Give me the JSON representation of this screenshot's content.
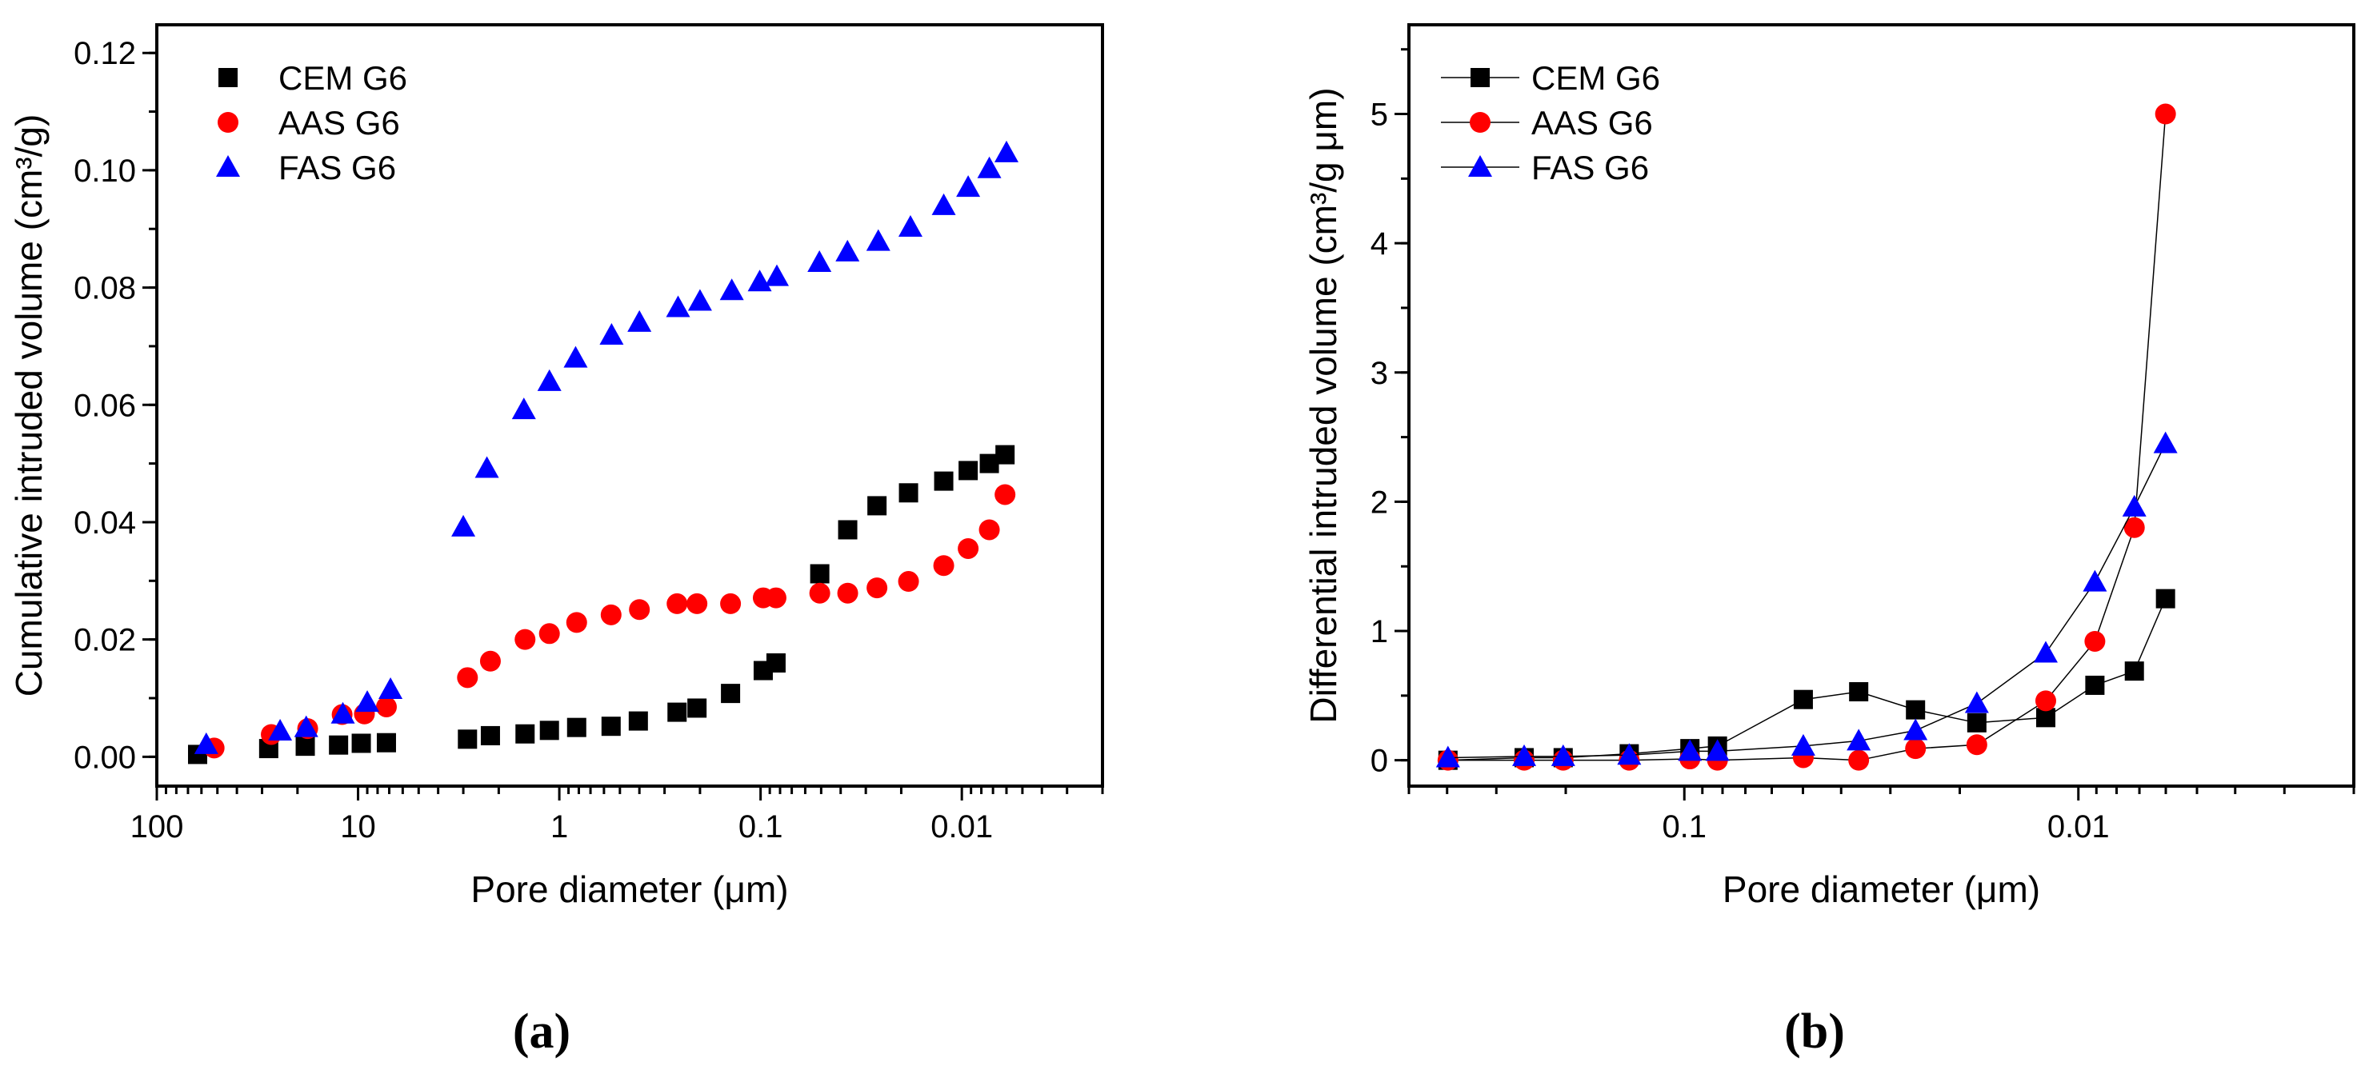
{
  "chart_data": [
    {
      "type": "scatter",
      "panel_label": "(a)",
      "xlabel": "Pore diameter (μm)",
      "ylabel": "Cumulative intruded volume (cm³/g)",
      "xscale": "log-reversed",
      "xlim": [
        100,
        0.002
      ],
      "ylim": [
        -0.005,
        0.1248
      ],
      "x_ticks": [
        100,
        10,
        1,
        0.1,
        0.01
      ],
      "x_tick_labels": [
        "100",
        "10",
        "1",
        "0.1",
        "0.01"
      ],
      "y_ticks": [
        0,
        0.02,
        0.04,
        0.06,
        0.08,
        0.1,
        0.12
      ],
      "y_tick_labels": [
        "0.00",
        "0.02",
        "0.04",
        "0.06",
        "0.08",
        "0.10",
        "0.12"
      ],
      "y_minor_step": 0.01,
      "legend_position": "top-left",
      "connect_lines": false,
      "series": [
        {
          "name": "CEM G6",
          "marker": "square",
          "color": "#000000",
          "x": [
            62.7,
            27.8,
            18.3,
            12.5,
            9.64,
            7.23,
            2.86,
            2.2,
            1.48,
            1.12,
            0.82,
            0.553,
            0.405,
            0.26,
            0.207,
            0.141,
            0.097,
            0.0838,
            0.0508,
            0.0369,
            0.0264,
            0.0184,
            0.0123,
            0.0093,
            0.0073,
            0.0061
          ],
          "y": [
            0.0004,
            0.0014,
            0.0018,
            0.002,
            0.0023,
            0.0024,
            0.003,
            0.0036,
            0.0039,
            0.0045,
            0.005,
            0.0052,
            0.0061,
            0.0076,
            0.0083,
            0.0108,
            0.0147,
            0.016,
            0.0312,
            0.0387,
            0.0428,
            0.045,
            0.047,
            0.0488,
            0.05,
            0.0515
          ]
        },
        {
          "name": "AAS G6",
          "marker": "circle",
          "color": "#ff0000",
          "x": [
            51.9,
            27.0,
            17.8,
            12.0,
            9.3,
            7.23,
            2.86,
            2.2,
            1.48,
            1.12,
            0.82,
            0.553,
            0.4,
            0.26,
            0.207,
            0.141,
            0.097,
            0.0838,
            0.0508,
            0.0369,
            0.0264,
            0.0184,
            0.0123,
            0.0093,
            0.0073,
            0.0061
          ],
          "y": [
            0.0015,
            0.0038,
            0.0048,
            0.0072,
            0.0073,
            0.0085,
            0.0135,
            0.0163,
            0.02,
            0.021,
            0.0229,
            0.0242,
            0.0251,
            0.0261,
            0.0261,
            0.0261,
            0.0271,
            0.0271,
            0.0279,
            0.0279,
            0.0288,
            0.0299,
            0.0326,
            0.0355,
            0.0387,
            0.0447
          ]
        },
        {
          "name": "FAS G6",
          "marker": "triangle",
          "color": "#0000ff",
          "x": [
            56.8,
            24.4,
            18.1,
            11.9,
            9.0,
            6.9,
            3.0,
            2.29,
            1.5,
            1.12,
            0.83,
            0.55,
            0.4,
            0.257,
            0.2,
            0.139,
            0.101,
            0.083,
            0.051,
            0.037,
            0.026,
            0.018,
            0.0123,
            0.0093,
            0.0073,
            0.006
          ],
          "y": [
            0.0021,
            0.0044,
            0.005,
            0.0073,
            0.0093,
            0.0115,
            0.0392,
            0.0492,
            0.0592,
            0.064,
            0.068,
            0.0719,
            0.0741,
            0.0766,
            0.0777,
            0.0795,
            0.081,
            0.0819,
            0.0843,
            0.0861,
            0.0879,
            0.0903,
            0.094,
            0.0971,
            0.1003,
            0.103
          ]
        }
      ]
    },
    {
      "type": "line",
      "panel_label": "(b)",
      "xlabel": "Pore diameter (μm)",
      "ylabel": "Differential intruded volume (cm³/g μm)",
      "xscale": "log-reversed",
      "xlim": [
        0.5,
        0.002
      ],
      "ylim": [
        -0.2,
        5.69
      ],
      "x_ticks": [
        0.1,
        0.01
      ],
      "x_tick_labels": [
        "0.1",
        "0.01"
      ],
      "y_ticks": [
        0,
        1,
        2,
        3,
        4,
        5
      ],
      "y_tick_labels": [
        "0",
        "1",
        "2",
        "3",
        "4",
        "5"
      ],
      "y_minor_step": 0.5,
      "legend_position": "top-left",
      "connect_lines": true,
      "series": [
        {
          "name": "CEM G6",
          "marker": "square",
          "color": "#000000",
          "x": [
            0.398,
            0.255,
            0.203,
            0.138,
            0.0968,
            0.0824,
            0.0499,
            0.0361,
            0.0259,
            0.0181,
            0.0121,
            0.00908,
            0.00721,
            0.00601
          ],
          "y": [
            0,
            0.02,
            0.02,
            0.05,
            0.09,
            0.11,
            0.47,
            0.53,
            0.39,
            0.29,
            0.33,
            0.58,
            0.69,
            1.25
          ]
        },
        {
          "name": "AAS G6",
          "marker": "circle",
          "color": "#ff0000",
          "x": [
            0.398,
            0.255,
            0.203,
            0.138,
            0.0968,
            0.0824,
            0.0499,
            0.0361,
            0.0259,
            0.0181,
            0.0121,
            0.00908,
            0.00721,
            0.00601
          ],
          "y": [
            0,
            0,
            0,
            0,
            0.01,
            0,
            0.02,
            0,
            0.09,
            0.12,
            0.46,
            0.92,
            1.8,
            5.0
          ]
        },
        {
          "name": "FAS G6",
          "marker": "triangle",
          "color": "#0000ff",
          "x": [
            0.398,
            0.255,
            0.203,
            0.138,
            0.0968,
            0.0824,
            0.0499,
            0.0361,
            0.0259,
            0.0181,
            0.0121,
            0.00908,
            0.00721,
            0.00601
          ],
          "y": [
            0.02,
            0.03,
            0.03,
            0.04,
            0.07,
            0.07,
            0.11,
            0.15,
            0.23,
            0.44,
            0.83,
            1.38,
            1.96,
            2.45
          ]
        }
      ]
    }
  ]
}
